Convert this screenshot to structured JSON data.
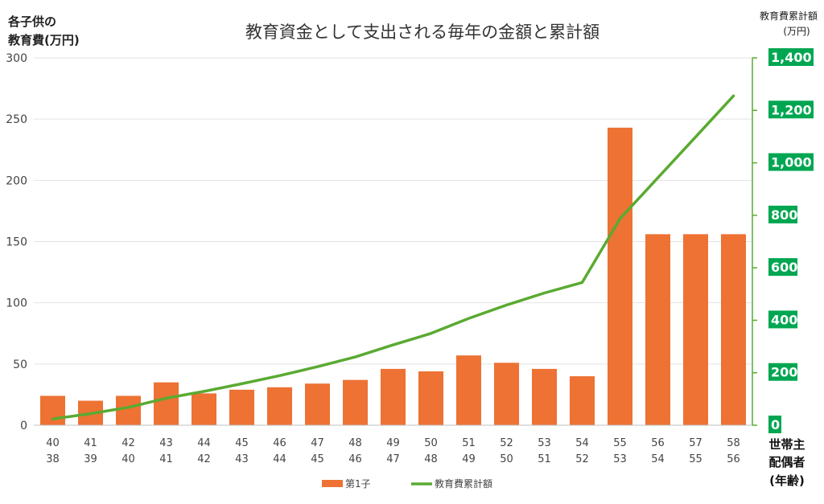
{
  "chart_data": {
    "type": "bar",
    "title": "教育資金として支出される毎年の金額と累計額",
    "ylabel": [
      "各子供の",
      "教育費(万円)"
    ],
    "ylabel_right": [
      "教育費累計額",
      "(万円)"
    ],
    "xlabel": [
      "世帯主",
      "配偶者",
      "(年齢)"
    ],
    "categories_primary": [
      "40",
      "41",
      "42",
      "43",
      "44",
      "45",
      "46",
      "47",
      "48",
      "49",
      "50",
      "51",
      "52",
      "53",
      "54",
      "55",
      "56",
      "57",
      "58"
    ],
    "categories_secondary": [
      "38",
      "39",
      "40",
      "41",
      "42",
      "43",
      "44",
      "45",
      "46",
      "47",
      "48",
      "49",
      "50",
      "51",
      "52",
      "53",
      "54",
      "55",
      "56"
    ],
    "ylim": [
      0,
      300
    ],
    "yticks": [
      "0",
      "50",
      "100",
      "150",
      "200",
      "250",
      "300"
    ],
    "y2lim": [
      0,
      1400
    ],
    "y2ticks": [
      "0",
      "200",
      "400",
      "600",
      "800",
      "1,000",
      "1,200",
      "1,400"
    ],
    "series": [
      {
        "name": "第1子",
        "type": "bar",
        "axis": "left",
        "color": "#ED7233",
        "values": [
          24,
          20,
          24,
          35,
          26,
          29,
          31,
          34,
          37,
          46,
          44,
          57,
          51,
          46,
          40,
          243,
          156,
          156,
          156
        ]
      },
      {
        "name": "教育費累計額",
        "type": "line",
        "axis": "right",
        "color": "#5AAA32",
        "values": [
          24,
          44,
          68,
          103,
          129,
          158,
          189,
          223,
          260,
          306,
          350,
          407,
          458,
          504,
          544,
          787,
          943,
          1099,
          1255
        ]
      }
    ],
    "legend_position": "bottom",
    "grid": true
  }
}
